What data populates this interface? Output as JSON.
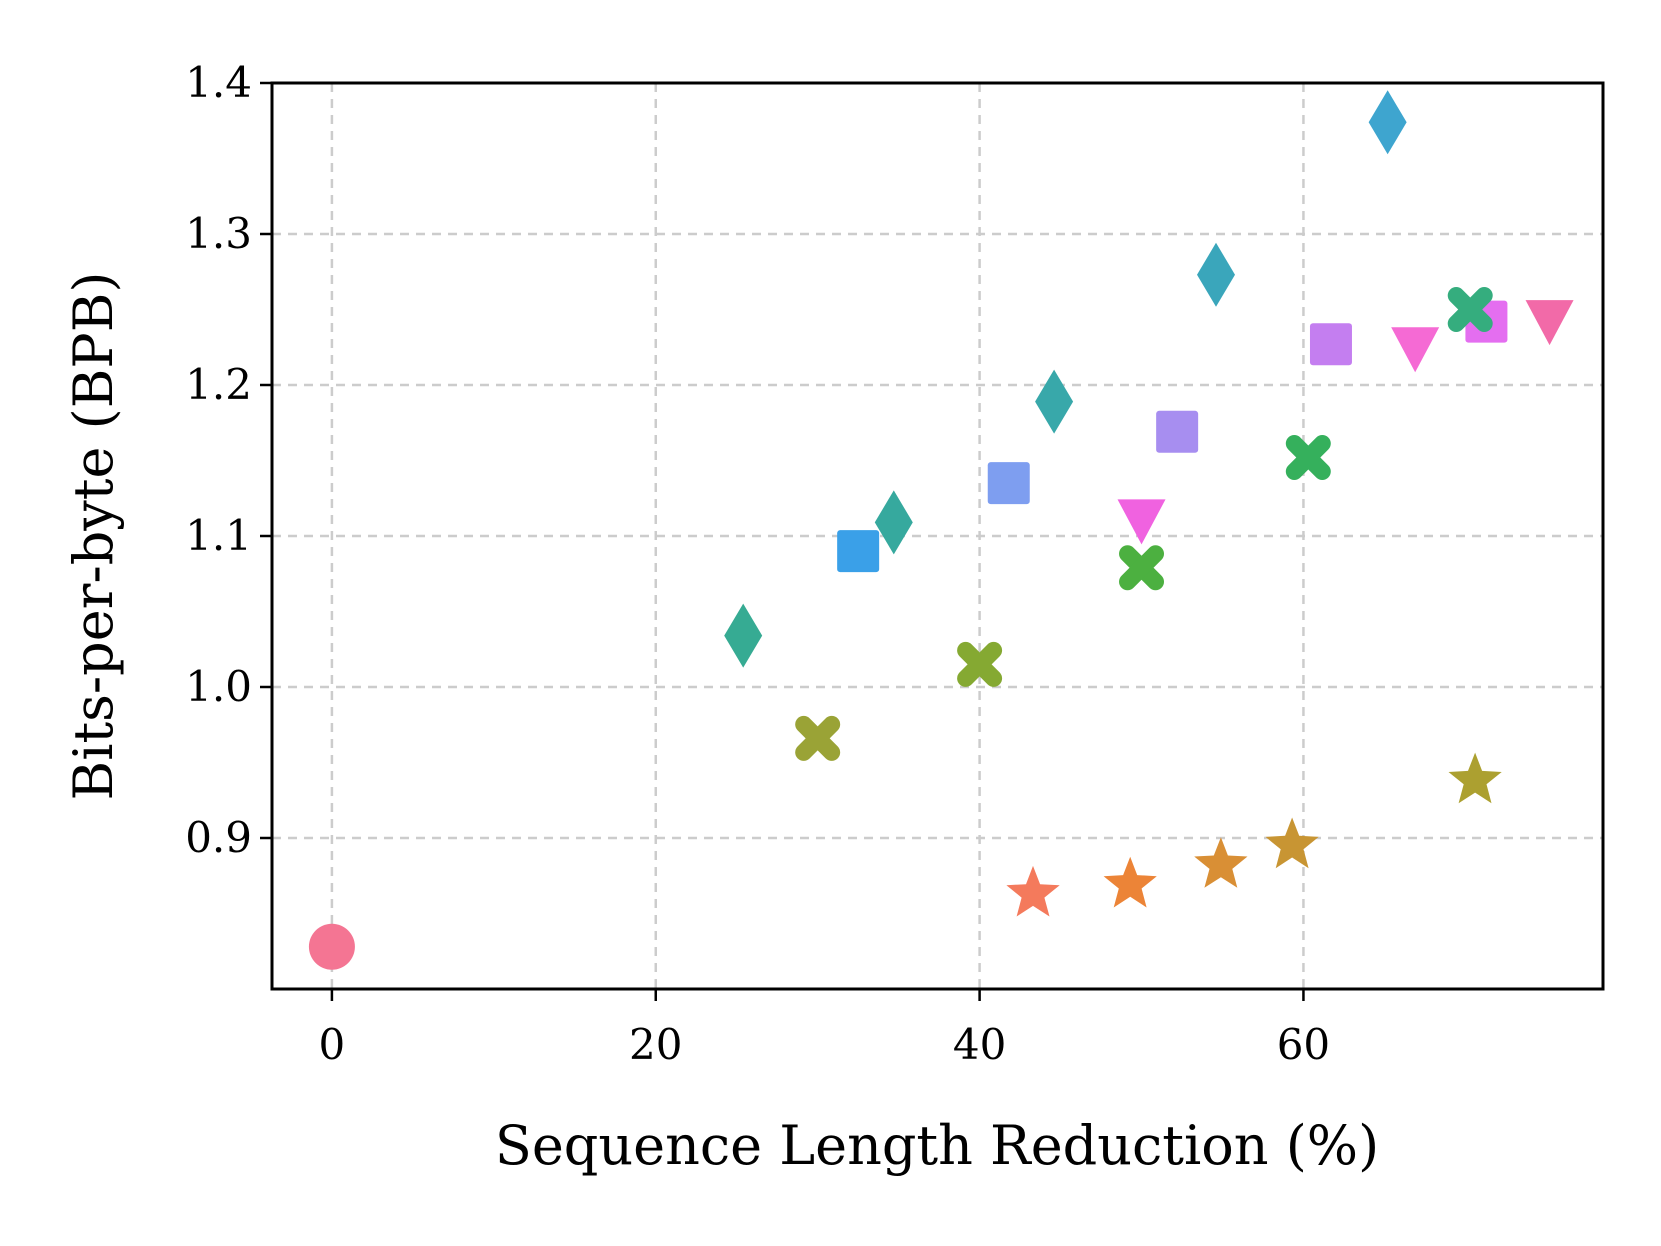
{
  "chart_data": {
    "type": "scatter",
    "title": "",
    "xlabel": "Sequence Length Reduction (%)",
    "ylabel": "Bits-per-byte (BPB)",
    "xlim": [
      -3.7,
      78.5
    ],
    "ylim": [
      0.8,
      1.4
    ],
    "xticks": [
      0,
      20,
      40,
      60
    ],
    "xtick_labels": [
      "0",
      "20",
      "40",
      "60"
    ],
    "yticks": [
      0.9,
      1.0,
      1.1,
      1.2,
      1.3,
      1.4
    ],
    "ytick_labels": [
      "0.9",
      "1.0",
      "1.1",
      "1.2",
      "1.3",
      "1.4"
    ],
    "grid": true,
    "points": [
      {
        "x": 0.0,
        "y": 0.828,
        "marker": "circle",
        "color": "#f47593"
      },
      {
        "x": 25.4,
        "y": 1.034,
        "marker": "diamond",
        "color": "#36ab93"
      },
      {
        "x": 34.7,
        "y": 1.109,
        "marker": "diamond",
        "color": "#36a99e"
      },
      {
        "x": 44.6,
        "y": 1.189,
        "marker": "diamond",
        "color": "#38a8aa"
      },
      {
        "x": 54.6,
        "y": 1.273,
        "marker": "diamond",
        "color": "#3aa6bb"
      },
      {
        "x": 65.2,
        "y": 1.374,
        "marker": "diamond",
        "color": "#3ea5cf"
      },
      {
        "x": 32.5,
        "y": 1.09,
        "marker": "square",
        "color": "#3aa0e8"
      },
      {
        "x": 41.8,
        "y": 1.135,
        "marker": "square",
        "color": "#7e9ef0"
      },
      {
        "x": 52.2,
        "y": 1.169,
        "marker": "square",
        "color": "#a78ef0"
      },
      {
        "x": 61.7,
        "y": 1.227,
        "marker": "square",
        "color": "#c47ef0"
      },
      {
        "x": 71.3,
        "y": 1.242,
        "marker": "square",
        "color": "#e46ef0"
      },
      {
        "x": 30.0,
        "y": 0.966,
        "marker": "x",
        "color": "#9aa336"
      },
      {
        "x": 40.0,
        "y": 1.015,
        "marker": "x",
        "color": "#85a932"
      },
      {
        "x": 50.0,
        "y": 1.079,
        "marker": "x",
        "color": "#4cb040"
      },
      {
        "x": 60.3,
        "y": 1.152,
        "marker": "x",
        "color": "#35b05c"
      },
      {
        "x": 70.3,
        "y": 1.25,
        "marker": "x",
        "color": "#35ad7e"
      },
      {
        "x": 50.0,
        "y": 1.111,
        "marker": "triangle",
        "color": "#f062e0"
      },
      {
        "x": 66.9,
        "y": 1.225,
        "marker": "triangle",
        "color": "#f56ad4"
      },
      {
        "x": 75.2,
        "y": 1.243,
        "marker": "triangle",
        "color": "#f26aa8"
      },
      {
        "x": 43.3,
        "y": 0.863,
        "marker": "star",
        "color": "#f47a5c"
      },
      {
        "x": 49.3,
        "y": 0.869,
        "marker": "star",
        "color": "#ec8437"
      },
      {
        "x": 54.9,
        "y": 0.882,
        "marker": "star",
        "color": "#d98f35"
      },
      {
        "x": 59.3,
        "y": 0.895,
        "marker": "star",
        "color": "#c89533"
      },
      {
        "x": 70.6,
        "y": 0.938,
        "marker": "star",
        "color": "#acA030"
      }
    ]
  }
}
